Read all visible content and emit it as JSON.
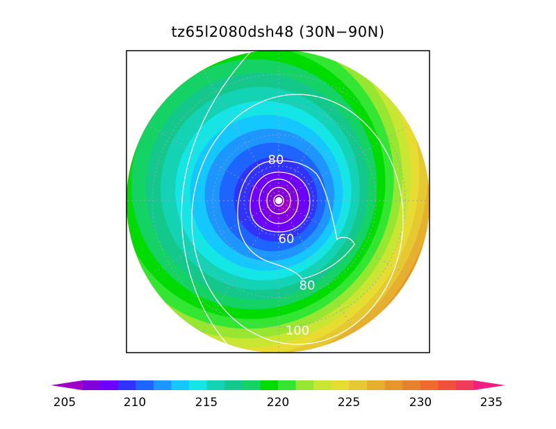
{
  "title": "tz65l2080dsh48 (30N−90N)",
  "colorbar": {
    "min": 205,
    "max": 235,
    "tick_labels": [
      "205",
      "210",
      "215",
      "220",
      "225",
      "230",
      "235"
    ],
    "tick_values": [
      205,
      210,
      215,
      220,
      225,
      230,
      235
    ],
    "colors": [
      "#a000c8",
      "#8200dc",
      "#6e00ff",
      "#3232ff",
      "#1e64ff",
      "#1e96ff",
      "#14c8ff",
      "#14e6e6",
      "#14d2b4",
      "#14c88c",
      "#14d264",
      "#00dc00",
      "#32e632",
      "#96e632",
      "#c8e632",
      "#e6dc32",
      "#e6c832",
      "#e6af2d",
      "#e6962d",
      "#e6822d",
      "#f0692d",
      "#f0503c",
      "#f03c5a",
      "#f01e82"
    ]
  },
  "contour_labels": [
    {
      "text": "80",
      "value": 80
    },
    {
      "text": "60",
      "value": 60
    },
    {
      "text": "80",
      "value": 80
    },
    {
      "text": "100",
      "value": 100
    }
  ]
}
